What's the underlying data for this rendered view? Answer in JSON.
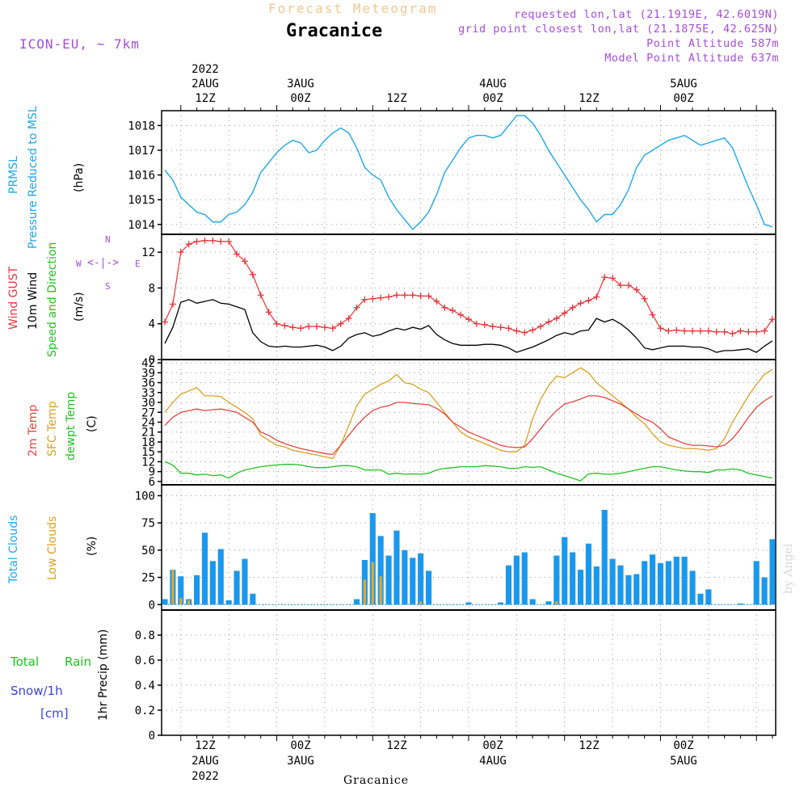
{
  "header": {
    "title": "Forecast Meteogram",
    "location": "Gracanice",
    "model": "ICON-EU, ~ 7km",
    "requested": "requested lon,lat (21.1919E, 42.6019N)",
    "grid_point": "grid point closest lon,lat (21.1875E, 42.625N)",
    "point_alt": "Point Altitude 587m",
    "model_alt": "Model Point Altitude 637m"
  },
  "top_axis": {
    "year": "2022",
    "labels": [
      {
        "day": "2AUG",
        "hour": "12Z"
      },
      {
        "day": "3AUG",
        "hour": "00Z"
      },
      {
        "day": "",
        "hour": "12Z"
      },
      {
        "day": "4AUG",
        "hour": "00Z"
      },
      {
        "day": "",
        "hour": "12Z"
      },
      {
        "day": "5AUG",
        "hour": "00Z"
      }
    ]
  },
  "bottom_axis": {
    "year": "2022",
    "labels": [
      {
        "hour": "12Z",
        "day": "2AUG"
      },
      {
        "hour": "00Z",
        "day": "3AUG"
      },
      {
        "hour": "12Z",
        "day": ""
      },
      {
        "hour": "00Z",
        "day": "4AUG"
      },
      {
        "hour": "12Z",
        "day": ""
      },
      {
        "hour": "00Z",
        "day": "5AUG"
      }
    ],
    "location": "Gracanice"
  },
  "watermark": "by Angel",
  "panel_labels": {
    "pressure": {
      "l1": "PRMSL",
      "l2": "Pressure Reduced to MSL",
      "unit": "(hPa)"
    },
    "wind": {
      "l1": "Wind GUST",
      "l2": "10m Wind",
      "l3": "Speed and Direction",
      "unit": "(m/s)",
      "compass_n": "N",
      "compass_s": "S",
      "compass_w": "W",
      "compass_e": "E"
    },
    "temp": {
      "l1": "2m Temp",
      "l2": "SFC Temp",
      "l3": "dewpt Temp",
      "unit": "(C)"
    },
    "cloud": {
      "l1": "Total Clouds",
      "l2": "Low Clouds",
      "unit": "(%)"
    },
    "precip": {
      "l1": "Total",
      "l1b": "Rain",
      "l2": "Snow/1h",
      "l3": "[cm]",
      "unit": "1hr Precip (mm)"
    }
  },
  "colors": {
    "pressure": "#1fa6e8",
    "gust": "#e8343a",
    "wind10m": "#000000",
    "t2m": "#e84444",
    "sfc": "#d9a020",
    "dewpt": "#22c022",
    "total_cloud": "#1a98ee",
    "low_cloud": "#e0a830",
    "purple": "#a64dd9"
  },
  "chart_data": [
    {
      "type": "line",
      "name": "pressure",
      "ylabel": "hPa",
      "ylim": [
        1013.6,
        1018.6
      ],
      "yticks": [
        1014,
        1015,
        1016,
        1017,
        1018
      ],
      "x_hours": [
        0,
        1,
        2,
        3,
        4,
        5,
        6,
        7,
        8,
        9,
        10,
        11,
        12,
        13,
        14,
        15,
        16,
        17,
        18,
        19,
        20,
        21,
        22,
        23,
        24,
        25,
        26,
        27,
        28,
        29,
        30,
        31,
        32,
        33,
        34,
        35,
        36,
        37,
        38,
        39,
        40,
        41,
        42,
        43,
        44,
        45,
        46,
        47,
        48,
        49,
        50,
        51,
        52,
        53,
        54,
        55,
        56,
        57,
        58,
        59,
        60,
        61,
        62,
        63,
        64,
        65,
        66,
        67,
        68,
        69,
        70,
        71,
        72,
        73,
        74,
        75,
        76
      ],
      "values": [
        1016.2,
        1015.8,
        1015.1,
        1014.8,
        1014.5,
        1014.4,
        1014.1,
        1014.1,
        1014.4,
        1014.5,
        1014.8,
        1015.3,
        1016.1,
        1016.5,
        1016.9,
        1017.2,
        1017.4,
        1017.3,
        1016.9,
        1017.0,
        1017.4,
        1017.7,
        1017.9,
        1017.7,
        1017.1,
        1016.3,
        1016.0,
        1015.8,
        1015.1,
        1014.6,
        1014.2,
        1013.8,
        1014.1,
        1014.5,
        1015.2,
        1016.1,
        1016.6,
        1017.1,
        1017.5,
        1017.6,
        1017.6,
        1017.5,
        1017.6,
        1018.0,
        1018.4,
        1018.4,
        1018.1,
        1017.6,
        1017.0,
        1016.5,
        1016.0,
        1015.5,
        1015.0,
        1014.6,
        1014.1,
        1014.4,
        1014.4,
        1014.8,
        1015.4,
        1016.3,
        1016.8,
        1017.0,
        1017.2,
        1017.4,
        1017.5,
        1017.6,
        1017.4,
        1017.2,
        1017.3,
        1017.4,
        1017.5,
        1017.1,
        1016.3,
        1015.5,
        1014.8,
        1014.0,
        1013.9
      ]
    },
    {
      "type": "line",
      "name": "wind",
      "ylabel": "m/s",
      "ylim": [
        0,
        14
      ],
      "yticks": [
        0,
        4,
        8,
        12
      ],
      "x_hours": [
        0,
        1,
        2,
        3,
        4,
        5,
        6,
        7,
        8,
        9,
        10,
        11,
        12,
        13,
        14,
        15,
        16,
        17,
        18,
        19,
        20,
        21,
        22,
        23,
        24,
        25,
        26,
        27,
        28,
        29,
        30,
        31,
        32,
        33,
        34,
        35,
        36,
        37,
        38,
        39,
        40,
        41,
        42,
        43,
        44,
        45,
        46,
        47,
        48,
        49,
        50,
        51,
        52,
        53,
        54,
        55,
        56,
        57,
        58,
        59,
        60,
        61,
        62,
        63,
        64,
        65,
        66,
        67,
        68,
        69,
        70,
        71,
        72,
        73,
        74,
        75,
        76
      ],
      "series": [
        {
          "name": "Wind GUST",
          "values": [
            4.2,
            6.2,
            12.0,
            12.9,
            13.2,
            13.3,
            13.3,
            13.2,
            13.2,
            11.8,
            11.0,
            9.5,
            7.2,
            5.3,
            4.0,
            3.8,
            3.6,
            3.5,
            3.7,
            3.7,
            3.6,
            3.5,
            4.0,
            4.6,
            5.8,
            6.7,
            6.8,
            6.9,
            7.0,
            7.2,
            7.2,
            7.2,
            7.1,
            7.1,
            6.5,
            5.8,
            5.5,
            5.0,
            4.5,
            4.0,
            3.9,
            3.7,
            3.6,
            3.5,
            3.2,
            3.0,
            3.3,
            3.7,
            4.2,
            4.6,
            5.2,
            5.8,
            6.3,
            6.6,
            7.0,
            9.2,
            9.1,
            8.3,
            8.3,
            7.8,
            6.8,
            5.0,
            3.5,
            3.2,
            3.3,
            3.2,
            3.2,
            3.2,
            3.2,
            3.1,
            3.1,
            2.9,
            3.2,
            3.1,
            3.1,
            3.2,
            4.5
          ]
        },
        {
          "name": "10m Wind",
          "values": [
            1.8,
            3.6,
            6.4,
            6.7,
            6.3,
            6.5,
            6.7,
            6.3,
            6.2,
            5.9,
            5.6,
            3.0,
            2.0,
            1.5,
            1.4,
            1.5,
            1.4,
            1.4,
            1.5,
            1.6,
            1.4,
            1.0,
            1.5,
            2.4,
            2.8,
            3.0,
            2.6,
            2.8,
            3.2,
            3.5,
            3.3,
            3.6,
            3.4,
            3.8,
            2.8,
            2.2,
            1.8,
            1.6,
            1.6,
            1.6,
            1.7,
            1.7,
            1.6,
            1.3,
            0.8,
            1.1,
            1.4,
            1.8,
            2.2,
            2.7,
            3.0,
            2.8,
            3.2,
            3.3,
            4.6,
            4.2,
            4.5,
            4.0,
            3.3,
            2.4,
            1.3,
            1.1,
            1.3,
            1.5,
            1.5,
            1.5,
            1.4,
            1.4,
            1.2,
            0.8,
            1.0,
            1.0,
            1.1,
            1.2,
            0.8,
            1.5,
            2.1
          ]
        }
      ]
    },
    {
      "type": "line",
      "name": "temperature",
      "ylabel": "C",
      "ylim": [
        5,
        43
      ],
      "yticks": [
        6,
        9,
        12,
        15,
        18,
        21,
        24,
        27,
        30,
        33,
        36,
        39,
        42
      ],
      "x_hours": [
        0,
        1,
        2,
        3,
        4,
        5,
        6,
        7,
        8,
        9,
        10,
        11,
        12,
        13,
        14,
        15,
        16,
        17,
        18,
        19,
        20,
        21,
        22,
        23,
        24,
        25,
        26,
        27,
        28,
        29,
        30,
        31,
        32,
        33,
        34,
        35,
        36,
        37,
        38,
        39,
        40,
        41,
        42,
        43,
        44,
        45,
        46,
        47,
        48,
        49,
        50,
        51,
        52,
        53,
        54,
        55,
        56,
        57,
        58,
        59,
        60,
        61,
        62,
        63,
        64,
        65,
        66,
        67,
        68,
        69,
        70,
        71,
        72,
        73,
        74,
        75,
        76
      ],
      "series": [
        {
          "name": "2m Temp",
          "values": [
            23,
            25.5,
            27,
            27.5,
            28,
            27.5,
            27.8,
            28,
            27.5,
            27,
            25.5,
            24,
            21,
            20,
            18.5,
            17.5,
            16.7,
            16,
            15.5,
            15,
            14.5,
            14.2,
            17,
            20,
            23,
            25.5,
            27.5,
            28.5,
            29,
            30,
            30,
            29.7,
            29.5,
            29.3,
            28.2,
            26.5,
            24,
            22.5,
            21,
            20,
            19,
            18,
            17,
            16.5,
            16.3,
            16.5,
            19,
            22,
            25,
            27.5,
            29.5,
            30.2,
            31,
            32,
            32,
            31.5,
            30.5,
            29.5,
            28,
            26.5,
            25,
            24,
            22,
            19.5,
            18.5,
            17.5,
            17,
            17,
            16.8,
            16.5,
            17,
            19,
            22,
            25.5,
            28.5,
            30.5,
            32
          ]
        },
        {
          "name": "SFC Temp",
          "values": [
            27,
            30,
            32.5,
            33.5,
            34.5,
            32,
            32,
            31.8,
            30,
            28.5,
            27,
            25,
            20,
            18.5,
            17,
            16.5,
            15.5,
            15,
            14.5,
            14,
            13.5,
            13,
            17,
            23,
            29,
            32.5,
            34,
            35.5,
            36.5,
            38.5,
            36,
            35.5,
            34,
            33,
            30,
            27,
            24,
            21,
            19.5,
            18.5,
            17.5,
            16.5,
            15.5,
            15,
            15,
            17,
            25,
            31,
            35,
            38,
            37.5,
            39,
            40.5,
            39,
            36,
            34,
            32,
            30,
            28,
            25.5,
            23.5,
            20.5,
            18,
            17,
            16.5,
            16,
            16,
            15.8,
            15.5,
            16,
            19,
            24,
            28,
            32,
            35.5,
            38.5,
            40
          ]
        },
        {
          "name": "dewpt Temp",
          "values": [
            12,
            11,
            8.5,
            8.5,
            8,
            8.2,
            7.8,
            8,
            7,
            8.5,
            9.5,
            10,
            10.5,
            10.8,
            11,
            11.2,
            11.2,
            11,
            10.5,
            10.2,
            10.2,
            10.5,
            10.8,
            10.8,
            10.5,
            9.5,
            9.5,
            9.5,
            8.2,
            8.5,
            8.2,
            8.3,
            8.2,
            8.5,
            9.5,
            10,
            10.2,
            10.5,
            10.5,
            10.5,
            10.8,
            10.7,
            10.5,
            10,
            10,
            10.5,
            10.3,
            10.5,
            9.5,
            8.5,
            7.8,
            7,
            6.2,
            8.3,
            8.5,
            8.2,
            8.2,
            8.5,
            9,
            9.5,
            10,
            10.5,
            10.5,
            10,
            9.5,
            9.2,
            9,
            9,
            8.7,
            9.5,
            9.5,
            9.8,
            9.5,
            8.5,
            8,
            7.5,
            7
          ]
        }
      ]
    },
    {
      "type": "bar",
      "name": "clouds",
      "ylabel": "%",
      "ylim": [
        -5,
        110
      ],
      "yticks": [
        0,
        25,
        50,
        75,
        100
      ],
      "x_hours": [
        0,
        1,
        2,
        3,
        4,
        5,
        6,
        7,
        8,
        9,
        10,
        11,
        12,
        13,
        14,
        15,
        16,
        17,
        18,
        19,
        20,
        21,
        22,
        23,
        24,
        25,
        26,
        27,
        28,
        29,
        30,
        31,
        32,
        33,
        34,
        35,
        36,
        37,
        38,
        39,
        40,
        41,
        42,
        43,
        44,
        45,
        46,
        47,
        48,
        49,
        50,
        51,
        52,
        53,
        54,
        55,
        56,
        57,
        58,
        59,
        60,
        61,
        62,
        63,
        64,
        65,
        66,
        67,
        68,
        69,
        70,
        71,
        72,
        73,
        74,
        75,
        76
      ],
      "series": [
        {
          "name": "Total Clouds",
          "values": [
            5,
            32,
            26,
            5,
            27,
            66,
            40,
            51,
            4,
            31,
            42,
            10,
            0,
            0,
            0,
            0,
            0,
            0,
            0,
            0,
            0,
            0,
            0,
            0,
            5,
            41,
            84,
            63,
            45,
            68,
            50,
            43,
            47,
            31,
            0,
            0,
            0,
            0,
            2,
            0,
            0,
            0,
            2,
            36,
            45,
            48,
            5,
            0,
            3,
            45,
            62,
            48,
            32,
            56,
            35,
            87,
            42,
            36,
            27,
            28,
            40,
            46,
            38,
            40,
            44,
            44,
            31,
            10,
            14,
            0,
            0,
            0,
            1,
            0,
            40,
            25,
            60
          ]
        },
        {
          "name": "Low Clouds",
          "values": [
            0,
            32,
            6,
            4,
            0,
            0,
            0,
            0,
            0,
            0,
            0,
            0,
            0,
            0,
            0,
            0,
            0,
            0,
            0,
            0,
            0,
            0,
            0,
            0,
            0,
            23,
            39,
            26,
            0,
            0,
            0,
            0,
            3,
            0,
            0,
            0,
            0,
            0,
            0,
            0,
            0,
            0,
            0,
            0,
            0,
            0,
            0,
            0,
            0,
            3,
            0,
            0,
            0,
            0,
            0,
            0,
            0,
            0,
            0,
            0,
            0,
            0,
            0,
            0,
            0,
            0,
            0,
            0,
            0,
            0,
            0,
            0,
            0,
            0,
            0,
            0,
            0
          ]
        }
      ]
    },
    {
      "type": "bar",
      "name": "precip",
      "ylabel": "1hr Precip (mm)",
      "ylim": [
        0,
        1.0
      ],
      "yticks": [
        0,
        0.2,
        0.4,
        0.6,
        0.8
      ],
      "series": [
        {
          "name": "Total Rain",
          "values": []
        },
        {
          "name": "Snow/1h",
          "values": []
        }
      ]
    }
  ]
}
